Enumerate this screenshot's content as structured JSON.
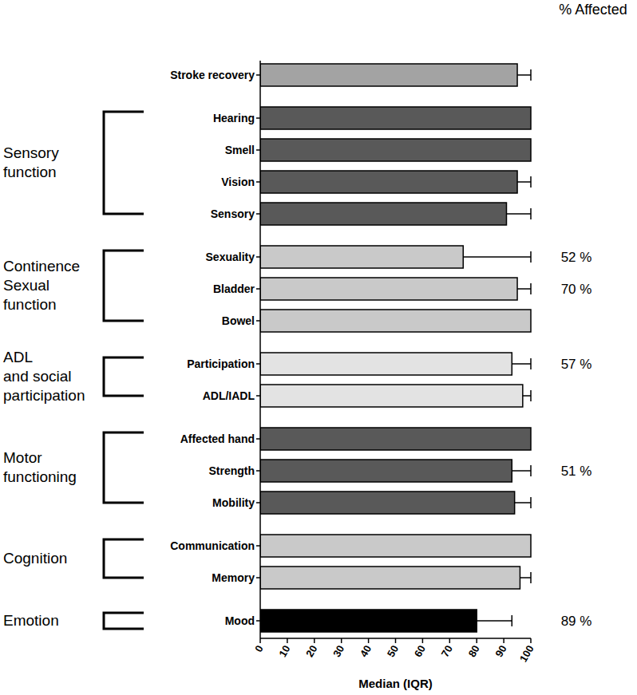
{
  "chart_data": {
    "type": "bar",
    "orientation": "horizontal",
    "x_label": "Median (IQR)",
    "categories": [
      "Stroke recovery",
      "Hearing",
      "Smell",
      "Vision",
      "Sensory",
      "Sexuality",
      "Bladder",
      "Bowel",
      "Participation",
      "ADL/IADL",
      "Affected hand",
      "Strength",
      "Mobility",
      "Communication",
      "Memory",
      "Mood"
    ],
    "values": [
      95,
      100,
      100,
      95,
      91,
      75,
      95,
      100,
      93,
      97,
      100,
      93,
      94,
      100,
      96,
      80
    ],
    "q3": [
      100,
      100,
      100,
      100,
      100,
      100,
      100,
      100,
      100,
      100,
      100,
      100,
      100,
      100,
      100,
      93
    ],
    "colors": [
      "#a3a3a3",
      "#595959",
      "#595959",
      "#595959",
      "#595959",
      "#c9c9c9",
      "#c9c9c9",
      "#c9c9c9",
      "#e3e3e3",
      "#e3e3e3",
      "#595959",
      "#595959",
      "#595959",
      "#c9c9c9",
      "#c9c9c9",
      "#000000"
    ],
    "xlim": [
      0,
      100
    ],
    "xticks": [
      0,
      10,
      20,
      30,
      40,
      50,
      60,
      70,
      80,
      90,
      100
    ],
    "groups": [
      {
        "label": [
          "Sensory",
          "function"
        ],
        "first": 1,
        "last": 4
      },
      {
        "label": [
          "Continence",
          "Sexual",
          "function"
        ],
        "first": 5,
        "last": 7
      },
      {
        "label": [
          "ADL",
          "and social",
          "participation"
        ],
        "first": 8,
        "last": 9
      },
      {
        "label": [
          "Motor",
          "functioning"
        ],
        "first": 10,
        "last": 12
      },
      {
        "label": [
          "Cognition"
        ],
        "first": 13,
        "last": 14
      },
      {
        "label": [
          "Emotion"
        ],
        "first": 15,
        "last": 15
      }
    ],
    "affected_title": "% Affected",
    "affected": [
      null,
      null,
      null,
      null,
      null,
      52,
      70,
      null,
      57,
      null,
      null,
      51,
      null,
      null,
      null,
      89
    ],
    "affected_labels": [
      null,
      null,
      null,
      null,
      null,
      "52 %",
      "70 %",
      null,
      "57 %",
      null,
      null,
      "51 %",
      null,
      null,
      null,
      "89 %"
    ]
  }
}
